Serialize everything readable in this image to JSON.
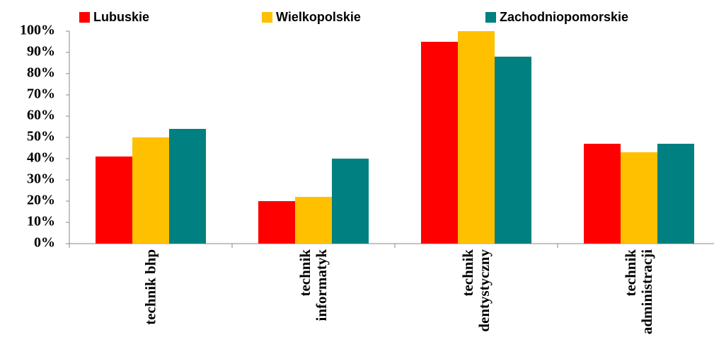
{
  "chart_data": {
    "type": "bar",
    "categories": [
      "technik bhp",
      "technik informatyk",
      "technik dentystyczny",
      "technik administracji"
    ],
    "series": [
      {
        "name": "Lubuskie",
        "color": "#ff0000",
        "values": [
          41,
          20,
          95,
          47
        ]
      },
      {
        "name": "Wielkopolskie",
        "color": "#ffc000",
        "values": [
          50,
          22,
          100,
          43
        ]
      },
      {
        "name": "Zachodniopomorskie",
        "color": "#008080",
        "values": [
          54,
          40,
          88,
          47
        ]
      }
    ],
    "ylim": [
      0,
      100
    ],
    "yticks": [
      {
        "value": 0,
        "label": "0%"
      },
      {
        "value": 10,
        "label": "10%"
      },
      {
        "value": 20,
        "label": "20%"
      },
      {
        "value": 30,
        "label": "30%"
      },
      {
        "value": 40,
        "label": "40%"
      },
      {
        "value": 50,
        "label": "50%"
      },
      {
        "value": 60,
        "label": "60%"
      },
      {
        "value": 70,
        "label": "70%"
      },
      {
        "value": 80,
        "label": "80%"
      },
      {
        "value": 90,
        "label": "90%"
      },
      {
        "value": 100,
        "label": "100%"
      }
    ],
    "legend": "top",
    "grid": false
  }
}
